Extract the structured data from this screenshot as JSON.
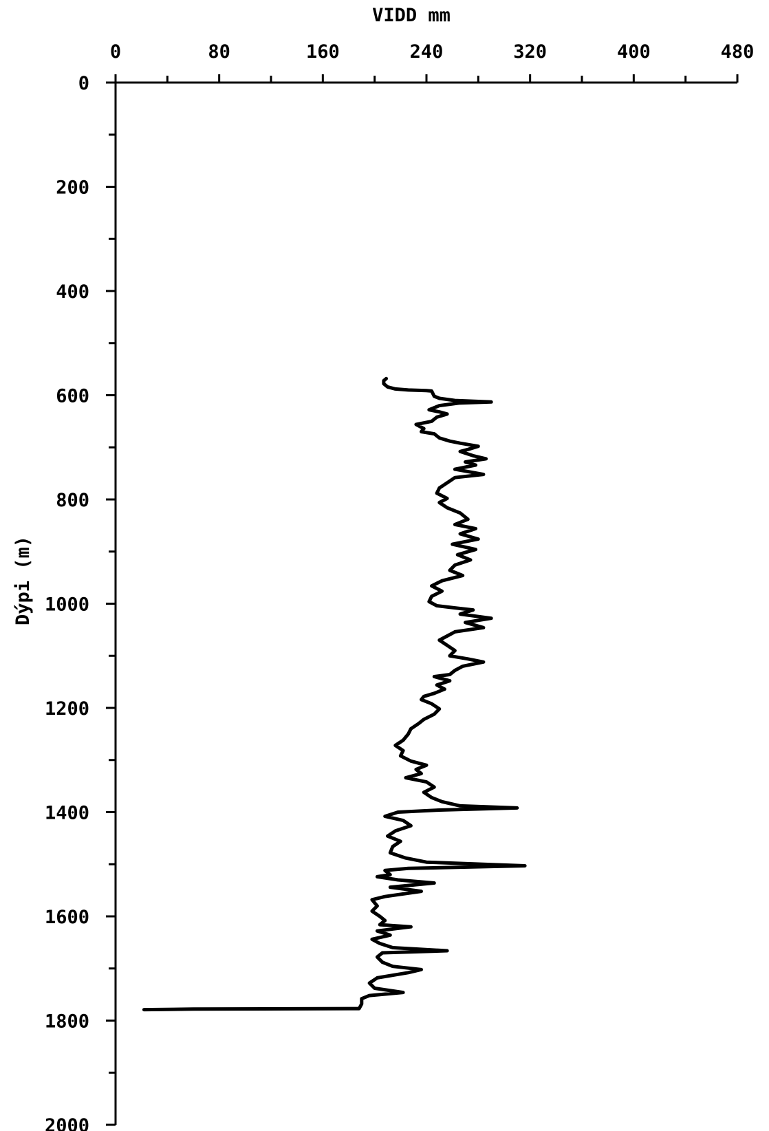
{
  "chart_data": {
    "type": "line",
    "xlabel": "VIDD mm",
    "ylabel": "Dýpi (m)",
    "xlim": [
      0,
      480
    ],
    "ylim": [
      0,
      2000
    ],
    "y_inverted": true,
    "x_axis_position": "top",
    "grid": false,
    "xticks": [
      0,
      80,
      160,
      240,
      320,
      400,
      480
    ],
    "xtick_labels": [
      "0",
      "80",
      "160",
      "240",
      "320",
      "400",
      "480"
    ],
    "yticks": [
      0,
      200,
      400,
      600,
      800,
      1000,
      1200,
      1400,
      1600,
      1800,
      2000
    ],
    "ytick_labels": [
      "0",
      "200",
      "400",
      "600",
      "800",
      "1000",
      "1200",
      "1400",
      "1600",
      "1800",
      "2000"
    ],
    "series": [
      {
        "points": [
          [
            209,
            568
          ],
          [
            207,
            572
          ],
          [
            207,
            578
          ],
          [
            210,
            584
          ],
          [
            216,
            588
          ],
          [
            226,
            590
          ],
          [
            240,
            591
          ],
          [
            244,
            592
          ],
          [
            246,
            602
          ],
          [
            250,
            606
          ],
          [
            262,
            610
          ],
          [
            290,
            613
          ],
          [
            265,
            615
          ],
          [
            250,
            620
          ],
          [
            242,
            628
          ],
          [
            250,
            632
          ],
          [
            256,
            636
          ],
          [
            248,
            642
          ],
          [
            244,
            650
          ],
          [
            232,
            656
          ],
          [
            238,
            664
          ],
          [
            236,
            670
          ],
          [
            246,
            674
          ],
          [
            250,
            682
          ],
          [
            258,
            688
          ],
          [
            266,
            692
          ],
          [
            280,
            698
          ],
          [
            272,
            704
          ],
          [
            266,
            708
          ],
          [
            276,
            716
          ],
          [
            286,
            722
          ],
          [
            270,
            728
          ],
          [
            278,
            734
          ],
          [
            262,
            742
          ],
          [
            284,
            752
          ],
          [
            262,
            758
          ],
          [
            256,
            768
          ],
          [
            250,
            778
          ],
          [
            248,
            788
          ],
          [
            256,
            798
          ],
          [
            250,
            806
          ],
          [
            256,
            816
          ],
          [
            266,
            826
          ],
          [
            272,
            838
          ],
          [
            262,
            848
          ],
          [
            278,
            856
          ],
          [
            266,
            866
          ],
          [
            280,
            876
          ],
          [
            260,
            886
          ],
          [
            278,
            896
          ],
          [
            264,
            906
          ],
          [
            274,
            916
          ],
          [
            262,
            926
          ],
          [
            258,
            936
          ],
          [
            268,
            946
          ],
          [
            252,
            956
          ],
          [
            244,
            966
          ],
          [
            252,
            976
          ],
          [
            244,
            986
          ],
          [
            242,
            996
          ],
          [
            248,
            1004
          ],
          [
            262,
            1008
          ],
          [
            276,
            1012
          ],
          [
            266,
            1020
          ],
          [
            290,
            1028
          ],
          [
            270,
            1036
          ],
          [
            284,
            1046
          ],
          [
            262,
            1054
          ],
          [
            256,
            1062
          ],
          [
            250,
            1070
          ],
          [
            256,
            1080
          ],
          [
            262,
            1090
          ],
          [
            258,
            1100
          ],
          [
            272,
            1106
          ],
          [
            284,
            1112
          ],
          [
            268,
            1120
          ],
          [
            262,
            1128
          ],
          [
            258,
            1136
          ],
          [
            246,
            1140
          ],
          [
            258,
            1148
          ],
          [
            248,
            1156
          ],
          [
            254,
            1164
          ],
          [
            246,
            1172
          ],
          [
            238,
            1178
          ],
          [
            236,
            1184
          ],
          [
            244,
            1192
          ],
          [
            250,
            1202
          ],
          [
            246,
            1212
          ],
          [
            238,
            1222
          ],
          [
            234,
            1230
          ],
          [
            228,
            1240
          ],
          [
            226,
            1250
          ],
          [
            222,
            1262
          ],
          [
            216,
            1272
          ],
          [
            222,
            1282
          ],
          [
            220,
            1292
          ],
          [
            228,
            1302
          ],
          [
            240,
            1310
          ],
          [
            232,
            1318
          ],
          [
            236,
            1326
          ],
          [
            224,
            1334
          ],
          [
            240,
            1342
          ],
          [
            246,
            1352
          ],
          [
            238,
            1362
          ],
          [
            244,
            1372
          ],
          [
            252,
            1380
          ],
          [
            266,
            1388
          ],
          [
            310,
            1392
          ],
          [
            250,
            1396
          ],
          [
            218,
            1400
          ],
          [
            208,
            1408
          ],
          [
            222,
            1416
          ],
          [
            228,
            1426
          ],
          [
            216,
            1436
          ],
          [
            210,
            1446
          ],
          [
            220,
            1456
          ],
          [
            214,
            1466
          ],
          [
            212,
            1478
          ],
          [
            224,
            1488
          ],
          [
            240,
            1496
          ],
          [
            316,
            1503
          ],
          [
            226,
            1508
          ],
          [
            208,
            1512
          ],
          [
            212,
            1520
          ],
          [
            202,
            1524
          ],
          [
            218,
            1530
          ],
          [
            246,
            1536
          ],
          [
            212,
            1544
          ],
          [
            236,
            1552
          ],
          [
            208,
            1562
          ],
          [
            198,
            1568
          ],
          [
            202,
            1580
          ],
          [
            198,
            1590
          ],
          [
            204,
            1600
          ],
          [
            208,
            1608
          ],
          [
            204,
            1616
          ],
          [
            228,
            1620
          ],
          [
            202,
            1628
          ],
          [
            212,
            1636
          ],
          [
            198,
            1644
          ],
          [
            204,
            1652
          ],
          [
            214,
            1660
          ],
          [
            256,
            1666
          ],
          [
            206,
            1670
          ],
          [
            202,
            1678
          ],
          [
            206,
            1688
          ],
          [
            214,
            1696
          ],
          [
            236,
            1702
          ],
          [
            226,
            1708
          ],
          [
            202,
            1718
          ],
          [
            196,
            1728
          ],
          [
            200,
            1738
          ],
          [
            222,
            1746
          ],
          [
            196,
            1752
          ],
          [
            190,
            1758
          ],
          [
            190,
            1768
          ],
          [
            188,
            1777
          ],
          [
            60,
            1778
          ],
          [
            22,
            1779
          ]
        ]
      }
    ]
  }
}
